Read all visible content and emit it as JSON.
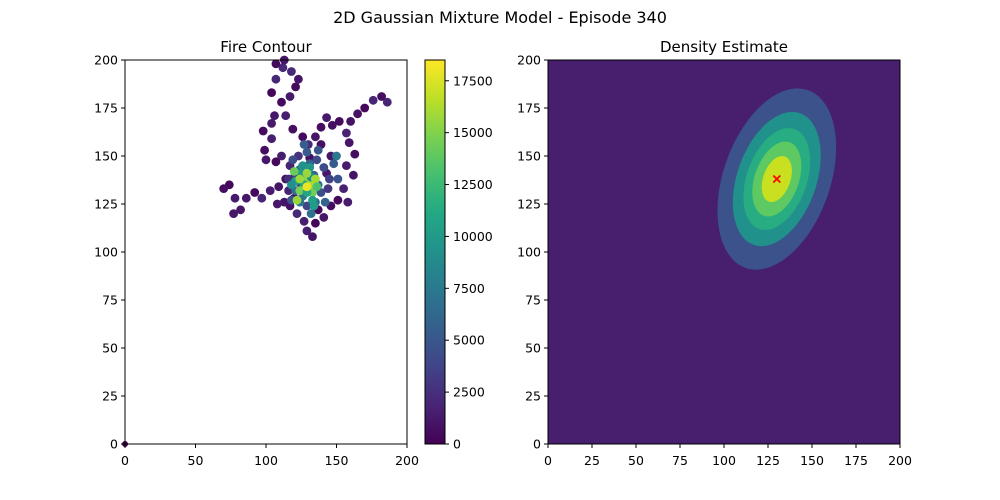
{
  "figure": {
    "suptitle": "2D Gaussian Mixture Model - Episode 340"
  },
  "chart_data": [
    {
      "type": "scatter",
      "title": "Fire Contour",
      "xlabel": "",
      "ylabel": "",
      "xlim": [
        0,
        200
      ],
      "ylim": [
        0,
        200
      ],
      "xticks": [
        "0",
        "50",
        "100",
        "150",
        "200"
      ],
      "yticks": [
        "0",
        "25",
        "50",
        "75",
        "100",
        "125",
        "150",
        "175",
        "200"
      ],
      "colormap": "viridis",
      "colorbar": {
        "range": [
          0,
          18500
        ],
        "ticks": [
          "0",
          "2500",
          "5000",
          "7500",
          "10000",
          "12500",
          "15000",
          "17500"
        ]
      },
      "outlier_point": {
        "x": 0,
        "y": 0,
        "value": 0
      },
      "core_point": {
        "x": 129,
        "y": 134,
        "value": 18000
      },
      "path_points": [
        [
          82,
          122,
          0
        ],
        [
          78,
          128,
          0
        ],
        [
          74,
          135,
          0
        ],
        [
          70,
          133,
          0
        ],
        [
          77,
          120,
          0
        ],
        [
          86,
          128,
          0
        ],
        [
          92,
          131,
          0
        ],
        [
          97,
          128,
          0
        ],
        [
          103,
          132,
          0
        ],
        [
          109,
          134,
          0
        ],
        [
          114,
          138,
          0
        ],
        [
          117,
          145,
          0
        ],
        [
          111,
          150,
          0
        ],
        [
          107,
          147,
          0
        ],
        [
          100,
          148,
          0
        ],
        [
          99,
          153,
          0
        ],
        [
          104,
          159,
          0
        ],
        [
          98,
          163,
          0
        ],
        [
          104,
          167,
          0
        ],
        [
          106,
          171,
          0
        ],
        [
          111,
          178,
          0
        ],
        [
          104,
          183,
          0
        ],
        [
          107,
          190,
          0
        ],
        [
          112,
          196,
          0
        ],
        [
          107,
          198,
          0
        ],
        [
          113,
          200,
          0
        ],
        [
          118,
          194,
          0
        ],
        [
          121,
          186,
          0
        ],
        [
          123,
          190,
          0
        ],
        [
          117,
          181,
          0
        ],
        [
          114,
          171,
          0
        ],
        [
          119,
          164,
          0
        ],
        [
          126,
          160,
          0
        ],
        [
          130,
          156,
          0
        ],
        [
          135,
          160,
          0
        ],
        [
          139,
          165,
          0
        ],
        [
          143,
          170,
          0
        ],
        [
          147,
          166,
          0
        ],
        [
          152,
          168,
          0
        ],
        [
          157,
          162,
          0
        ],
        [
          160,
          168,
          0
        ],
        [
          165,
          172,
          0
        ],
        [
          170,
          175,
          0
        ],
        [
          176,
          179,
          0
        ],
        [
          182,
          181,
          0
        ],
        [
          186,
          178,
          0
        ],
        [
          159,
          157,
          0
        ],
        [
          163,
          151,
          0
        ],
        [
          157,
          145,
          0
        ],
        [
          162,
          140,
          0
        ],
        [
          155,
          133,
          0
        ],
        [
          158,
          126,
          0
        ],
        [
          151,
          127,
          0
        ],
        [
          146,
          124,
          0
        ],
        [
          141,
          118,
          0
        ],
        [
          137,
          122,
          0
        ],
        [
          135,
          115,
          0
        ],
        [
          133,
          108,
          0
        ],
        [
          129,
          111,
          0
        ],
        [
          127,
          116,
          0
        ],
        [
          122,
          120,
          0
        ],
        [
          117,
          124,
          0
        ],
        [
          113,
          126,
          0
        ],
        [
          108,
          125,
          0
        ],
        [
          120,
          128,
          0
        ],
        [
          116,
          132,
          0
        ],
        [
          143,
          141,
          0
        ],
        [
          146,
          150,
          0
        ],
        [
          139,
          156,
          0
        ],
        [
          131,
          149,
          0
        ]
      ],
      "ring_points": [
        [
          124,
          143,
          0
        ],
        [
          120,
          139,
          0
        ],
        [
          124,
          136,
          0
        ],
        [
          128,
          140,
          0
        ],
        [
          121,
          132,
          0
        ],
        [
          126,
          129,
          0
        ],
        [
          133,
          131,
          0
        ],
        [
          137,
          135,
          0
        ],
        [
          134,
          140,
          0
        ],
        [
          131,
          146,
          0
        ],
        [
          129,
          152,
          0
        ],
        [
          123,
          150,
          0
        ],
        [
          136,
          148,
          0
        ],
        [
          141,
          144,
          0
        ],
        [
          145,
          138,
          0
        ],
        [
          139,
          131,
          0
        ],
        [
          142,
          126,
          0
        ],
        [
          135,
          126,
          0
        ],
        [
          129,
          124,
          0
        ],
        [
          124,
          126,
          0
        ],
        [
          116,
          138,
          0
        ],
        [
          119,
          148,
          0
        ],
        [
          148,
          146,
          0
        ],
        [
          151,
          138,
          0
        ],
        [
          144,
          133,
          0
        ],
        [
          150,
          150,
          0
        ],
        [
          118,
          127,
          0
        ],
        [
          132,
          120,
          0
        ],
        [
          127,
          156,
          0
        ],
        [
          137,
          153,
          0
        ]
      ],
      "hot_points": [
        [
          125,
          141,
          0
        ],
        [
          128,
          137,
          0
        ],
        [
          131,
          135,
          0
        ],
        [
          127,
          135,
          0
        ],
        [
          132,
          139,
          0
        ],
        [
          121,
          137,
          0
        ],
        [
          124,
          132,
          0
        ],
        [
          133,
          131,
          0
        ],
        [
          120,
          142,
          0
        ],
        [
          135,
          138,
          0
        ],
        [
          129,
          131,
          0
        ],
        [
          122,
          127,
          0
        ],
        [
          133,
          127,
          0
        ],
        [
          126,
          145,
          0
        ],
        [
          131,
          144,
          0
        ],
        [
          118,
          135,
          0
        ],
        [
          136,
          134,
          0
        ],
        [
          129,
          141,
          0
        ],
        [
          124,
          138,
          0
        ],
        [
          134,
          124,
          0
        ]
      ]
    },
    {
      "type": "heatmap",
      "title": "Density Estimate",
      "xlabel": "",
      "ylabel": "",
      "xlim": [
        0,
        200
      ],
      "ylim": [
        0,
        200
      ],
      "xticks": [
        "0",
        "25",
        "50",
        "75",
        "100",
        "125",
        "150",
        "175",
        "200"
      ],
      "yticks": [
        "0",
        "25",
        "50",
        "75",
        "100",
        "125",
        "150",
        "175",
        "200"
      ],
      "gaussian": {
        "mean": [
          130,
          138
        ],
        "sx": 15,
        "sy": 21,
        "rho": 0.35
      },
      "levels": [
        0.08,
        0.25,
        0.45,
        0.65,
        0.85
      ],
      "level_colors": [
        "#440154",
        "#3b528b",
        "#21918c",
        "#27ad81",
        "#5ec962",
        "#c8e020"
      ],
      "mean_marker": {
        "x": 130,
        "y": 138,
        "symbol": "x",
        "color": "#ff0000"
      }
    }
  ]
}
